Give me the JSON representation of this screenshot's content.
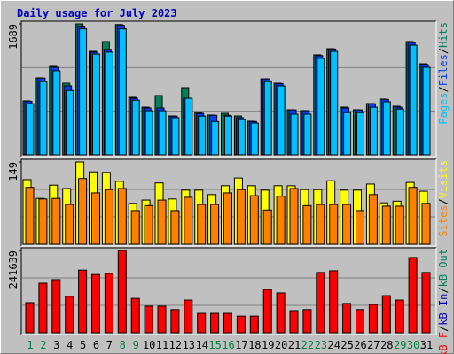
{
  "separator": "/",
  "chart_data": [
    {
      "type": "bar",
      "title": "Daily usage for July 2023",
      "ylim": [
        0,
        1689
      ],
      "yticks": [
        1689
      ],
      "grid": true,
      "legend_reverse": true,
      "series": [
        {
          "name": "Hits",
          "color": "#00805C",
          "values": [
            696,
            993,
            1141,
            924,
            1689,
            1335,
            1461,
            1680,
            742,
            616,
            765,
            502,
            867,
            548,
            514,
            536,
            502,
            434,
            981,
            924,
            582,
            571,
            1290,
            1369,
            616,
            582,
            662,
            719,
            628,
            1461,
            1175
          ]
        },
        {
          "name": "Files",
          "color": "#0040FF",
          "values": [
            690,
            990,
            1130,
            890,
            1660,
            1325,
            1360,
            1670,
            730,
            605,
            605,
            500,
            730,
            535,
            510,
            510,
            480,
            430,
            980,
            920,
            580,
            570,
            1280,
            1365,
            605,
            580,
            660,
            715,
            615,
            1450,
            1165
          ]
        },
        {
          "name": "Pages",
          "color": "#00C0FF",
          "values": [
            660,
            945,
            1085,
            830,
            1625,
            1300,
            1325,
            1625,
            705,
            570,
            570,
            480,
            730,
            500,
            430,
            500,
            455,
            410,
            945,
            890,
            525,
            525,
            1245,
            1335,
            545,
            545,
            615,
            685,
            590,
            1415,
            1130
          ]
        }
      ]
    },
    {
      "type": "bar",
      "ylim": [
        0,
        149
      ],
      "yticks": [
        149
      ],
      "grid": true,
      "legend_reverse": true,
      "series": [
        {
          "name": "Visits",
          "color": "#FFFF00",
          "values": [
            117,
            83,
            107,
            101,
            149,
            131,
            130,
            114,
            74,
            80,
            111,
            82,
            98,
            98,
            90,
            106,
            120,
            106,
            98,
            106,
            106,
            99,
            99,
            115,
            98,
            98,
            109,
            75,
            78,
            112,
            96
          ]
        },
        {
          "name": "Sites",
          "color": "#FF8000",
          "values": [
            103,
            82,
            83,
            72,
            119,
            93,
            99,
            101,
            61,
            70,
            80,
            61,
            85,
            72,
            72,
            93,
            99,
            88,
            62,
            87,
            101,
            70,
            72,
            72,
            72,
            61,
            90,
            69,
            69,
            103,
            74
          ]
        }
      ]
    },
    {
      "type": "bar",
      "ylim": [
        0,
        241639
      ],
      "yticks": [
        241639
      ],
      "grid": true,
      "legend_reverse": false,
      "categories": [
        "1",
        "2",
        "3",
        "4",
        "5",
        "6",
        "7",
        "8",
        "9",
        "10",
        "11",
        "12",
        "13",
        "14",
        "15",
        "16",
        "17",
        "18",
        "19",
        "20",
        "21",
        "22",
        "23",
        "24",
        "25",
        "26",
        "27",
        "28",
        "29",
        "30",
        "31"
      ],
      "category_colors": [
        "#008040",
        "#008040",
        "#000000",
        "#000000",
        "#000000",
        "#000000",
        "#000000",
        "#008040",
        "#008040",
        "#000000",
        "#000000",
        "#000000",
        "#000000",
        "#000000",
        "#008040",
        "#008040",
        "#000000",
        "#000000",
        "#000000",
        "#000000",
        "#000000",
        "#008040",
        "#008040",
        "#000000",
        "#000000",
        "#000000",
        "#000000",
        "#000000",
        "#008040",
        "#008040",
        "#000000"
      ],
      "series": [
        {
          "name": "kB F",
          "color": "#FF0000",
          "values": [
            88410,
            145500,
            156000,
            107000,
            184000,
            171000,
            174000,
            241639,
            101000,
            78000,
            78000,
            68000,
            96000,
            57000,
            57000,
            57000,
            49000,
            49000,
            127000,
            117000,
            65000,
            68000,
            177000,
            182000,
            86000,
            68000,
            83000,
            109000,
            96000,
            221000,
            177000
          ]
        }
      ],
      "legend_only": [
        {
          "name": "kB In",
          "color": "#0000C0"
        },
        {
          "name": "kB Out",
          "color": "#00805C"
        }
      ]
    }
  ]
}
